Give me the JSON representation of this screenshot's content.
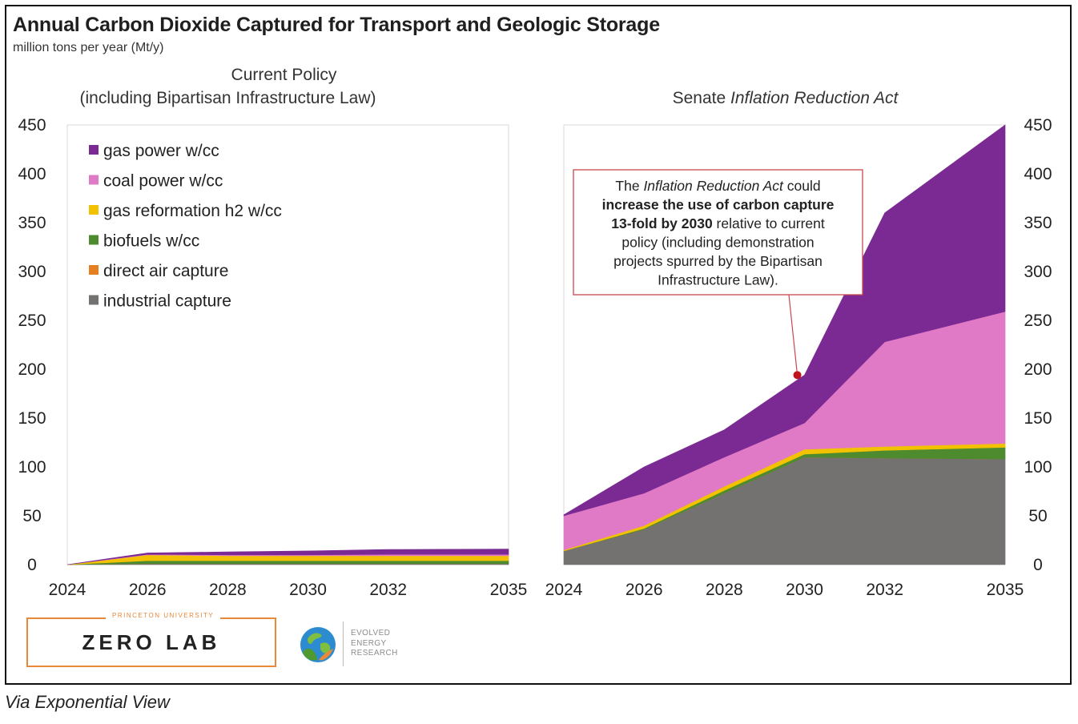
{
  "title": "Annual Carbon Dioxide Captured for Transport and Geologic Storage",
  "subtitle": "million tons per year (Mt/y)",
  "source_note": "Via Exponential View",
  "logos": {
    "zero_lab_university": "PRINCETON UNIVERSITY",
    "zero_lab_name": "ZERO LAB",
    "evolved": [
      "EVOLVED",
      "ENERGY",
      "RESEARCH"
    ]
  },
  "chart_data": [
    {
      "type": "area",
      "stacked": true,
      "title_lines": [
        "Current Policy",
        "(including Bipartisan Infrastructure Law)"
      ],
      "x": [
        "2024",
        "2026",
        "2028",
        "2030",
        "2032",
        "2035"
      ],
      "ylim": [
        0,
        450
      ],
      "y_ticks": [
        0,
        50,
        100,
        150,
        200,
        250,
        300,
        350,
        400,
        450
      ],
      "y_axis_side": "left",
      "legend": "top-left",
      "series": [
        {
          "name": "industrial capture",
          "color": "#747171",
          "values": [
            0,
            1,
            1,
            1,
            1,
            1
          ]
        },
        {
          "name": "direct air capture",
          "color": "#e67e22",
          "values": [
            0,
            0,
            0,
            0,
            0,
            0
          ]
        },
        {
          "name": "biofuels w/cc",
          "color": "#4e8a2e",
          "values": [
            0,
            3,
            3,
            3,
            3,
            3
          ]
        },
        {
          "name": "gas reformation h2 w/cc",
          "color": "#f2c200",
          "values": [
            0,
            6,
            5,
            5,
            5,
            5
          ]
        },
        {
          "name": "coal power w/cc",
          "color": "#e07ac6",
          "values": [
            0,
            0.5,
            1,
            1,
            1.5,
            1.5
          ]
        },
        {
          "name": "gas power w/cc",
          "color": "#7b2a93",
          "values": [
            0,
            1.5,
            3,
            4,
            5,
            5.5
          ]
        }
      ]
    },
    {
      "type": "area",
      "stacked": true,
      "title_prefix": "Senate ",
      "title_italic": "Inflation Reduction Act",
      "x": [
        "2024",
        "2026",
        "2028",
        "2030",
        "2032",
        "2035"
      ],
      "ylim": [
        0,
        450
      ],
      "y_ticks": [
        0,
        50,
        100,
        150,
        200,
        250,
        300,
        350,
        400,
        450
      ],
      "y_axis_side": "right",
      "series": [
        {
          "name": "industrial capture",
          "color": "#747171",
          "values": [
            14,
            36,
            73,
            110,
            109,
            108
          ]
        },
        {
          "name": "direct air capture",
          "color": "#e67e22",
          "values": [
            0,
            0,
            0,
            0,
            0,
            0
          ]
        },
        {
          "name": "biofuels w/cc",
          "color": "#4e8a2e",
          "values": [
            0,
            1,
            3,
            3,
            8,
            12
          ]
        },
        {
          "name": "gas reformation h2 w/cc",
          "color": "#f2c200",
          "values": [
            1,
            3,
            4,
            5,
            4,
            4
          ]
        },
        {
          "name": "coal power w/cc",
          "color": "#e07ac6",
          "values": [
            35,
            33,
            30,
            27,
            107,
            135
          ]
        },
        {
          "name": "gas power w/cc",
          "color": "#7b2a93",
          "values": [
            1,
            27,
            28,
            49,
            132,
            191
          ]
        }
      ],
      "annotation": {
        "x": "2030",
        "y": 194,
        "marker_color": "#c0141c",
        "box_border": "#c8494f",
        "lines": [
          [
            {
              "t": "The "
            },
            {
              "t": "Inflation Reduction Act",
              "i": true
            },
            {
              "t": " could"
            }
          ],
          [
            {
              "t": "increase the use of carbon capture",
              "b": true
            }
          ],
          [
            {
              "t": "13-fold by 2030",
              "b": true
            },
            {
              "t": " relative to current"
            }
          ],
          [
            {
              "t": "policy (including demonstration"
            }
          ],
          [
            {
              "t": "projects spurred by the Bipartisan"
            }
          ],
          [
            {
              "t": "Infrastructure Law)."
            }
          ]
        ]
      }
    }
  ]
}
